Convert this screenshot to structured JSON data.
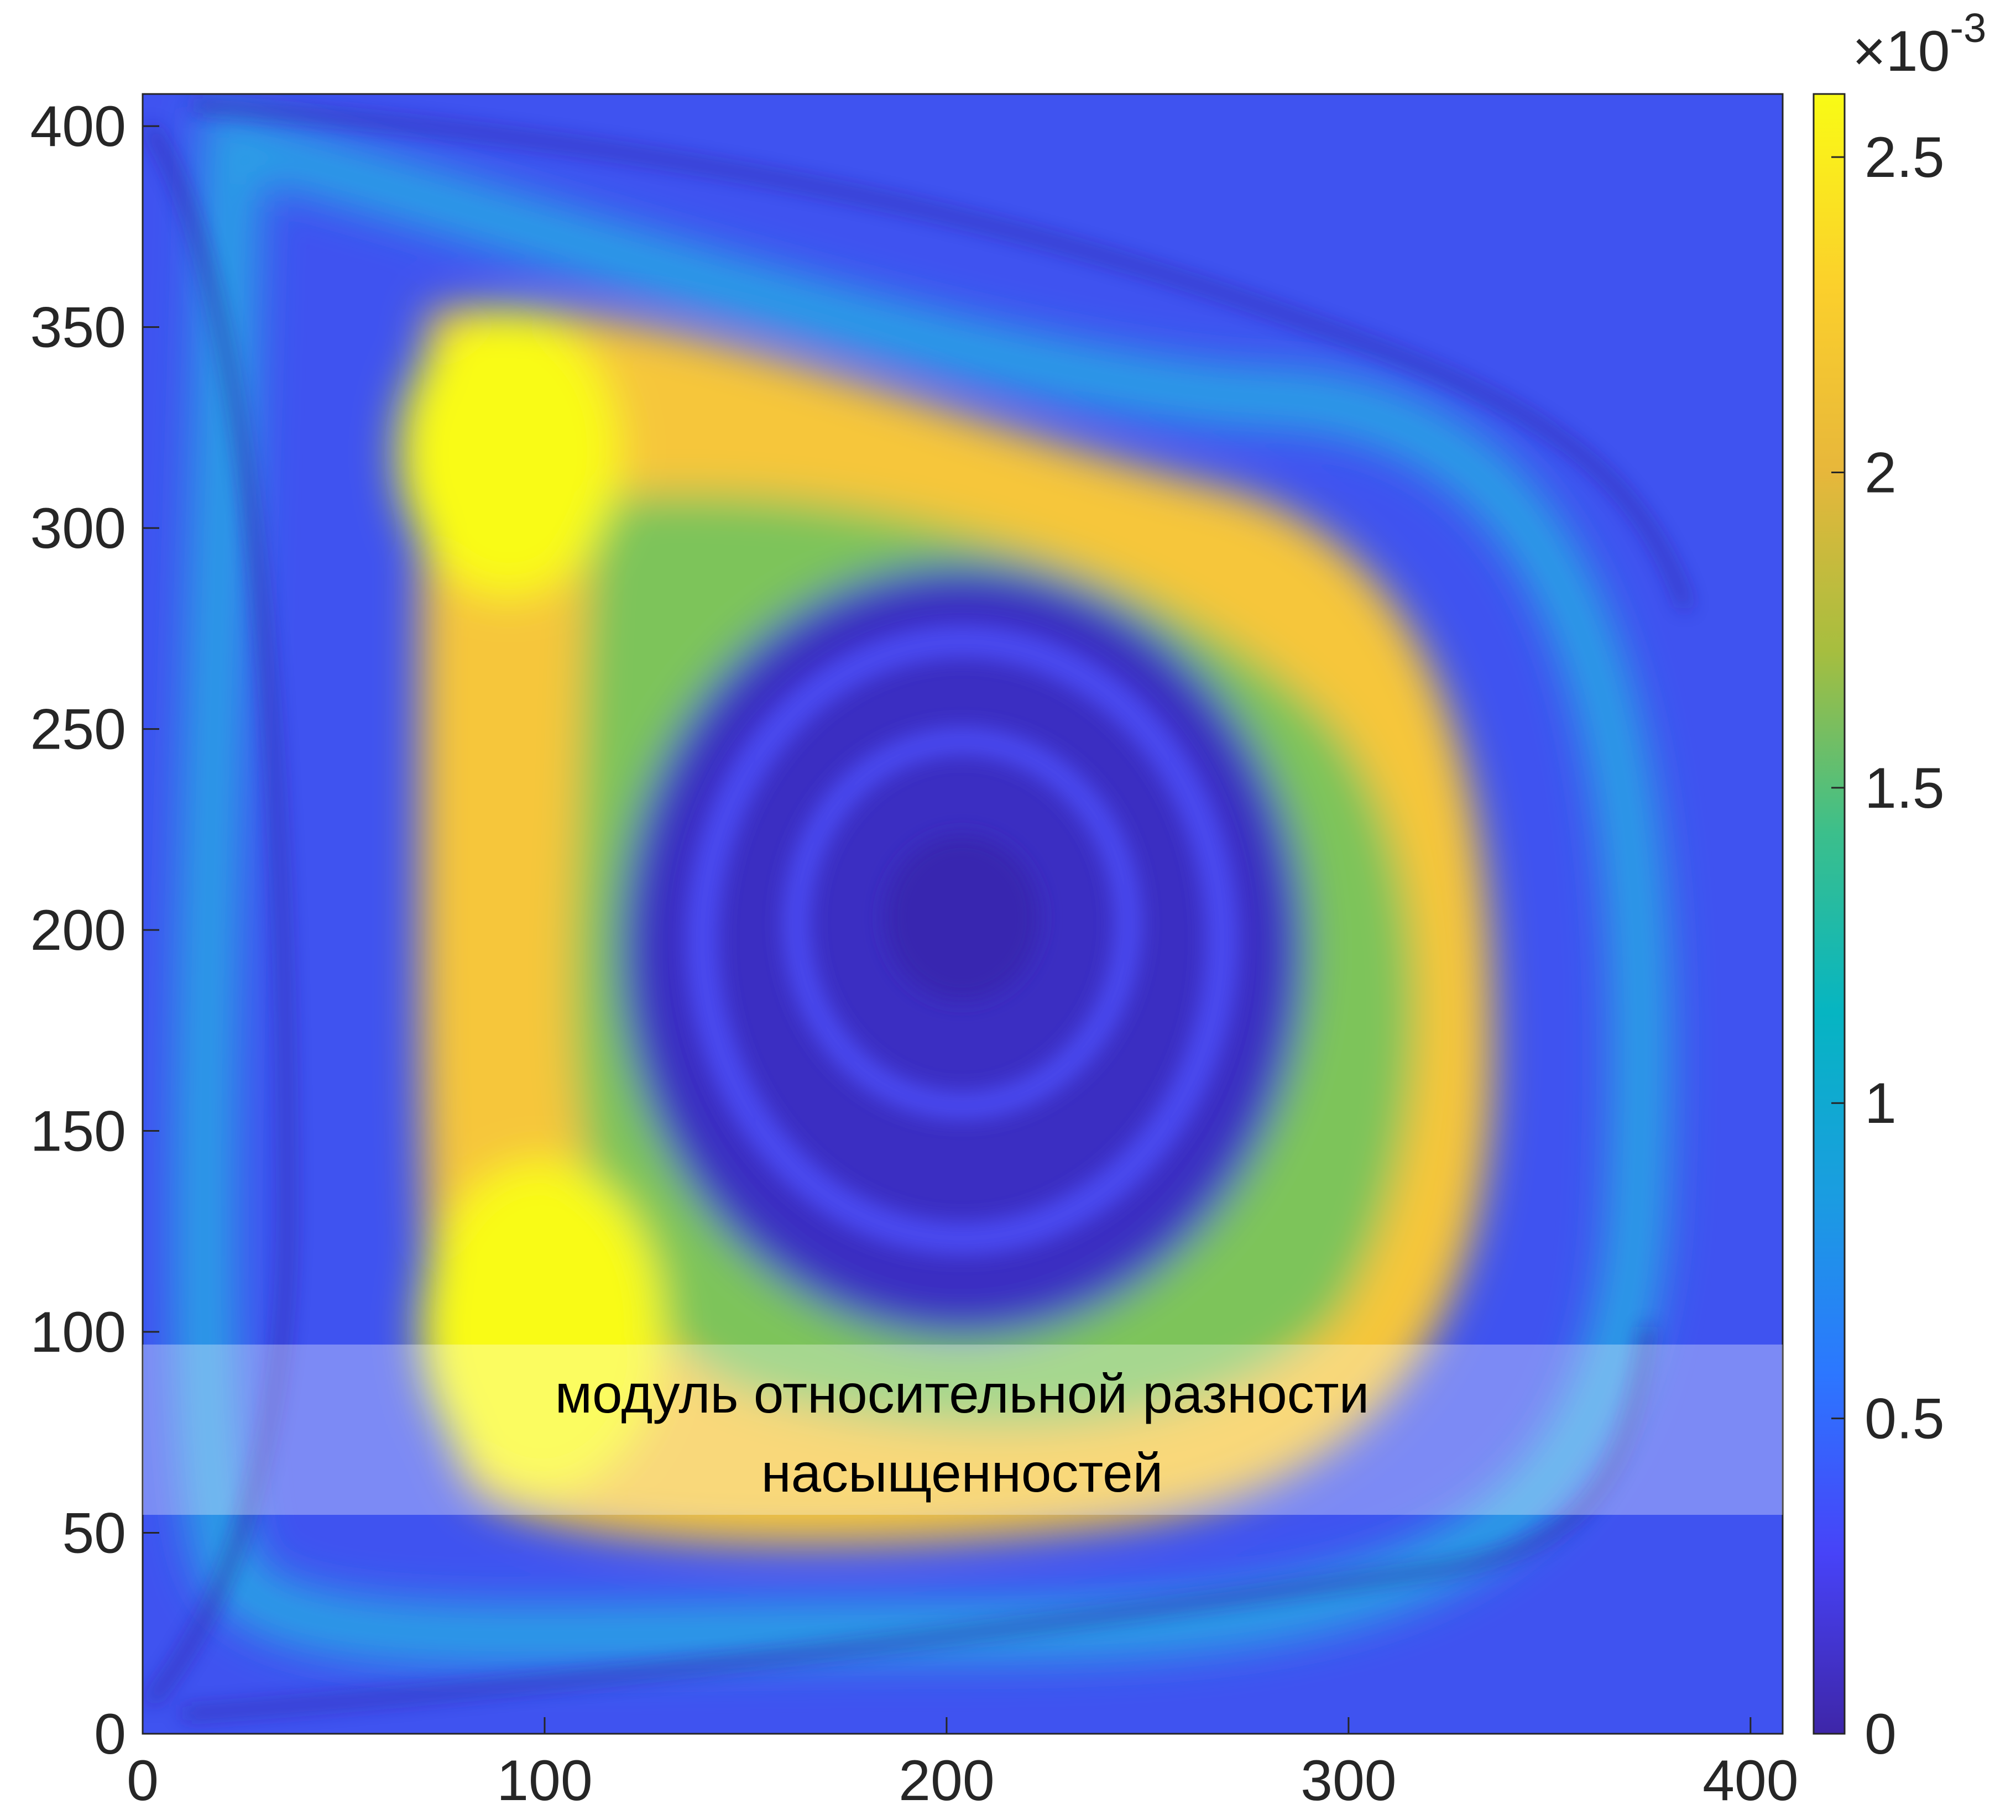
{
  "chart_data": {
    "type": "heatmap",
    "title": "",
    "xlabel": "",
    "ylabel": "",
    "xlim": [
      0,
      408
    ],
    "ylim": [
      0,
      408
    ],
    "x_ticks": [
      "0",
      "100",
      "200",
      "300",
      "400"
    ],
    "y_ticks": [
      "0",
      "50",
      "100",
      "150",
      "200",
      "250",
      "300",
      "350",
      "400"
    ],
    "colorbar": {
      "range": [
        0,
        0.0026
      ],
      "exponent_label": "×10",
      "exponent": "-3",
      "ticks": [
        "0",
        "0.5",
        "1",
        "1.5",
        "2",
        "2.5"
      ],
      "colormap": "parula",
      "stops": [
        "#3e26a8",
        "#4743f8",
        "#2c77ff",
        "#1a9de0",
        "#06b5c2",
        "#3cbf8b",
        "#a6be3f",
        "#e7b73b",
        "#fbcf2c",
        "#f9fb15"
      ]
    },
    "field_description_values": {
      "center": [
        205,
        205
      ],
      "annotation_band_y": [
        56,
        98
      ]
    },
    "annotation": {
      "line1": "модуль относительной разности",
      "line2": "насыщенностей"
    }
  }
}
